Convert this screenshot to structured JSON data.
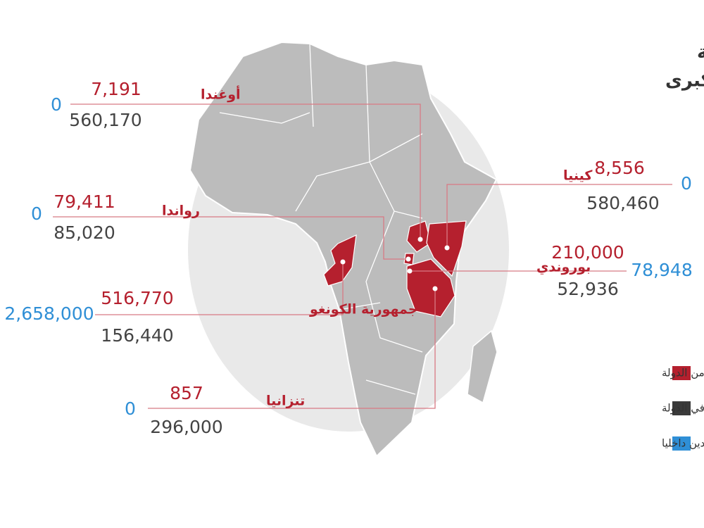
{
  "header": {
    "title_line1": "عدد اللاجئين في منطقة",
    "title_line2": "البحيرات الكبرى"
  },
  "countries": [
    {
      "name": "أوغندا",
      "refugees_from": "7,191",
      "refugees_in": "560,170",
      "idps": "0"
    },
    {
      "name": "كينيا",
      "refugees_from": "8,556",
      "refugees_in": "580,460",
      "idps": "0"
    },
    {
      "name": "رواندا",
      "refugees_from": "79,411",
      "refugees_in": "85,020",
      "idps": "0"
    },
    {
      "name": "بوروندي",
      "refugees_from": "210,000",
      "refugees_in": "52,936",
      "idps": "78,948"
    },
    {
      "name": "جمهورية الكونغو",
      "refugees_from": "516,770",
      "refugees_in": "156,440",
      "idps": "2,658,000"
    },
    {
      "name": "تنزانيا",
      "refugees_from": "857",
      "refugees_in": "296,000",
      "idps": "0"
    }
  ],
  "legend": [
    {
      "label": "عدد اللاجئين من الدولة",
      "color": "#b5202e"
    },
    {
      "label": "عدد اللاجئين في الدولة",
      "color": "#3a3a3a"
    },
    {
      "label": "عدد المشردين داخليا",
      "color": "#2f8fd6"
    }
  ]
}
